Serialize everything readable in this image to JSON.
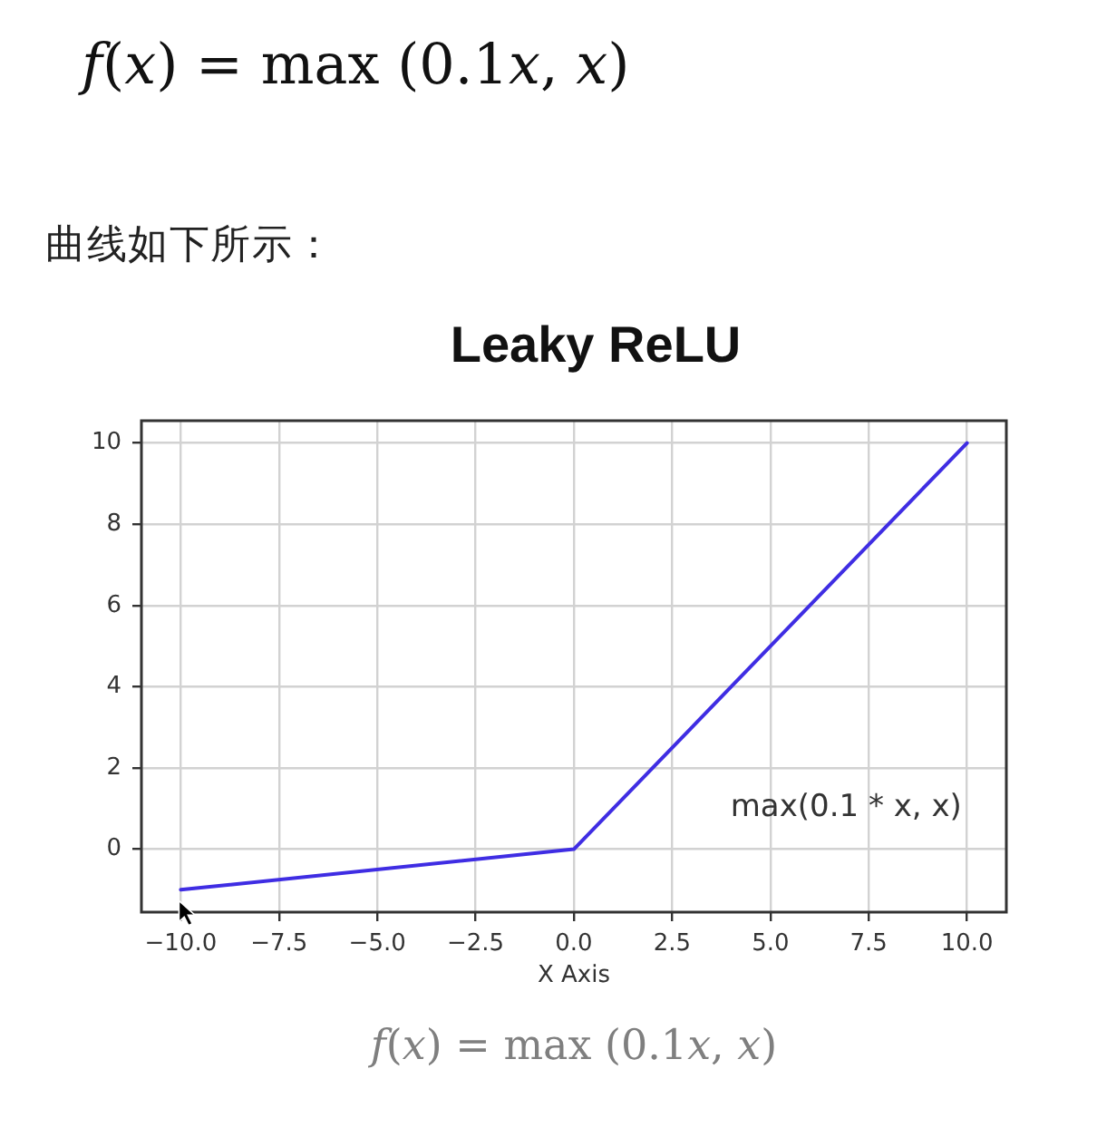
{
  "chart_data": {
    "type": "line",
    "title": "Leaky ReLU",
    "xlabel": "X Axis",
    "x": [
      -10,
      0,
      10
    ],
    "series": [
      {
        "color": "#3f2de3",
        "values": [
          -1,
          0,
          10
        ]
      }
    ],
    "xlim": [
      -11,
      11
    ],
    "ylim": [
      -1.55,
      10.55
    ],
    "xticks": [
      {
        "value": -10,
        "label": "−10.0"
      },
      {
        "value": -7.5,
        "label": "−7.5"
      },
      {
        "value": -5,
        "label": "−5.0"
      },
      {
        "value": -2.5,
        "label": "−2.5"
      },
      {
        "value": 0,
        "label": "0.0"
      },
      {
        "value": 2.5,
        "label": "2.5"
      },
      {
        "value": 5,
        "label": "5.0"
      },
      {
        "value": 7.5,
        "label": "7.5"
      },
      {
        "value": 10,
        "label": "10.0"
      }
    ],
    "yticks": [
      0,
      2,
      4,
      6,
      8,
      10
    ],
    "grid": true,
    "annotations": [
      "f(x) = max (0.1x, x)",
      "曲线如下所示：",
      "max(0.1 * x, x)",
      "f(x) = max (0.1x, x)"
    ]
  }
}
